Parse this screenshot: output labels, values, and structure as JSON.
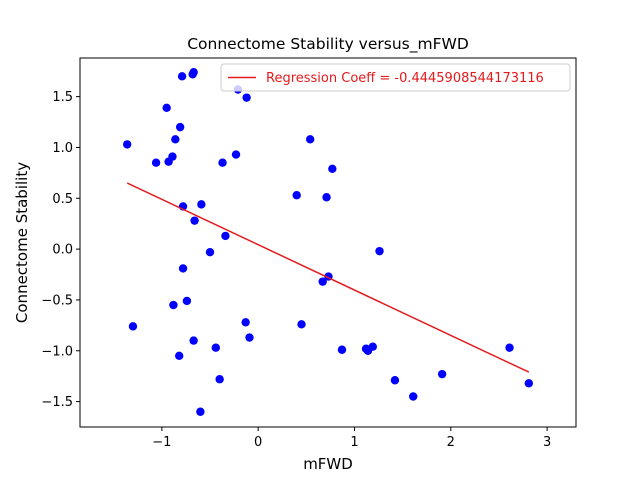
{
  "chart_data": {
    "type": "scatter",
    "title": "Connectome Stability versus_mFWD",
    "xlabel": "mFWD",
    "ylabel": "Connectome Stability",
    "xlim": [
      -1.85,
      3.3
    ],
    "ylim": [
      -1.75,
      1.88
    ],
    "xticks": [
      -1,
      0,
      1,
      2,
      3
    ],
    "yticks": [
      -1.5,
      -1.0,
      -0.5,
      0.0,
      0.5,
      1.0,
      1.5
    ],
    "grid": false,
    "legend_position": "top-right",
    "colors": {
      "points": "#0000ff",
      "regression": "#e41a1c"
    },
    "series": [
      {
        "type": "scatter",
        "x": [
          -0.68,
          -0.67,
          -0.79,
          -0.95,
          -0.21,
          -0.12,
          -0.81,
          -0.86,
          -1.36,
          -1.06,
          -0.93,
          -0.89,
          0.54,
          0.77,
          -0.37,
          -0.23,
          0.4,
          0.71,
          -0.78,
          -0.59,
          -0.66,
          -0.34,
          -0.5,
          1.26,
          -0.78,
          0.73,
          0.67,
          -0.74,
          -0.88,
          -1.3,
          0.45,
          -0.13,
          -0.09,
          -0.67,
          -0.82,
          -0.44,
          0.87,
          1.12,
          1.14,
          1.19,
          2.61,
          1.42,
          -0.4,
          1.91,
          1.61,
          2.81,
          -0.6
        ],
        "y": [
          1.72,
          1.74,
          1.7,
          1.39,
          1.57,
          1.49,
          1.2,
          1.08,
          1.03,
          0.85,
          0.86,
          0.91,
          1.08,
          0.79,
          0.85,
          0.93,
          0.53,
          0.51,
          0.42,
          0.44,
          0.28,
          0.13,
          -0.03,
          -0.02,
          -0.19,
          -0.27,
          -0.32,
          -0.51,
          -0.55,
          -0.76,
          -0.74,
          -0.72,
          -0.87,
          -0.9,
          -1.05,
          -0.97,
          -0.99,
          -0.98,
          -1.0,
          -0.96,
          -0.97,
          -1.29,
          -1.28,
          -1.23,
          -1.45,
          -1.32,
          -1.6
        ]
      },
      {
        "type": "line",
        "name": "Regression Coeff = -0.4445908544173116",
        "x": [
          -1.36,
          2.81
        ],
        "y": [
          0.65,
          -1.21
        ]
      }
    ]
  }
}
